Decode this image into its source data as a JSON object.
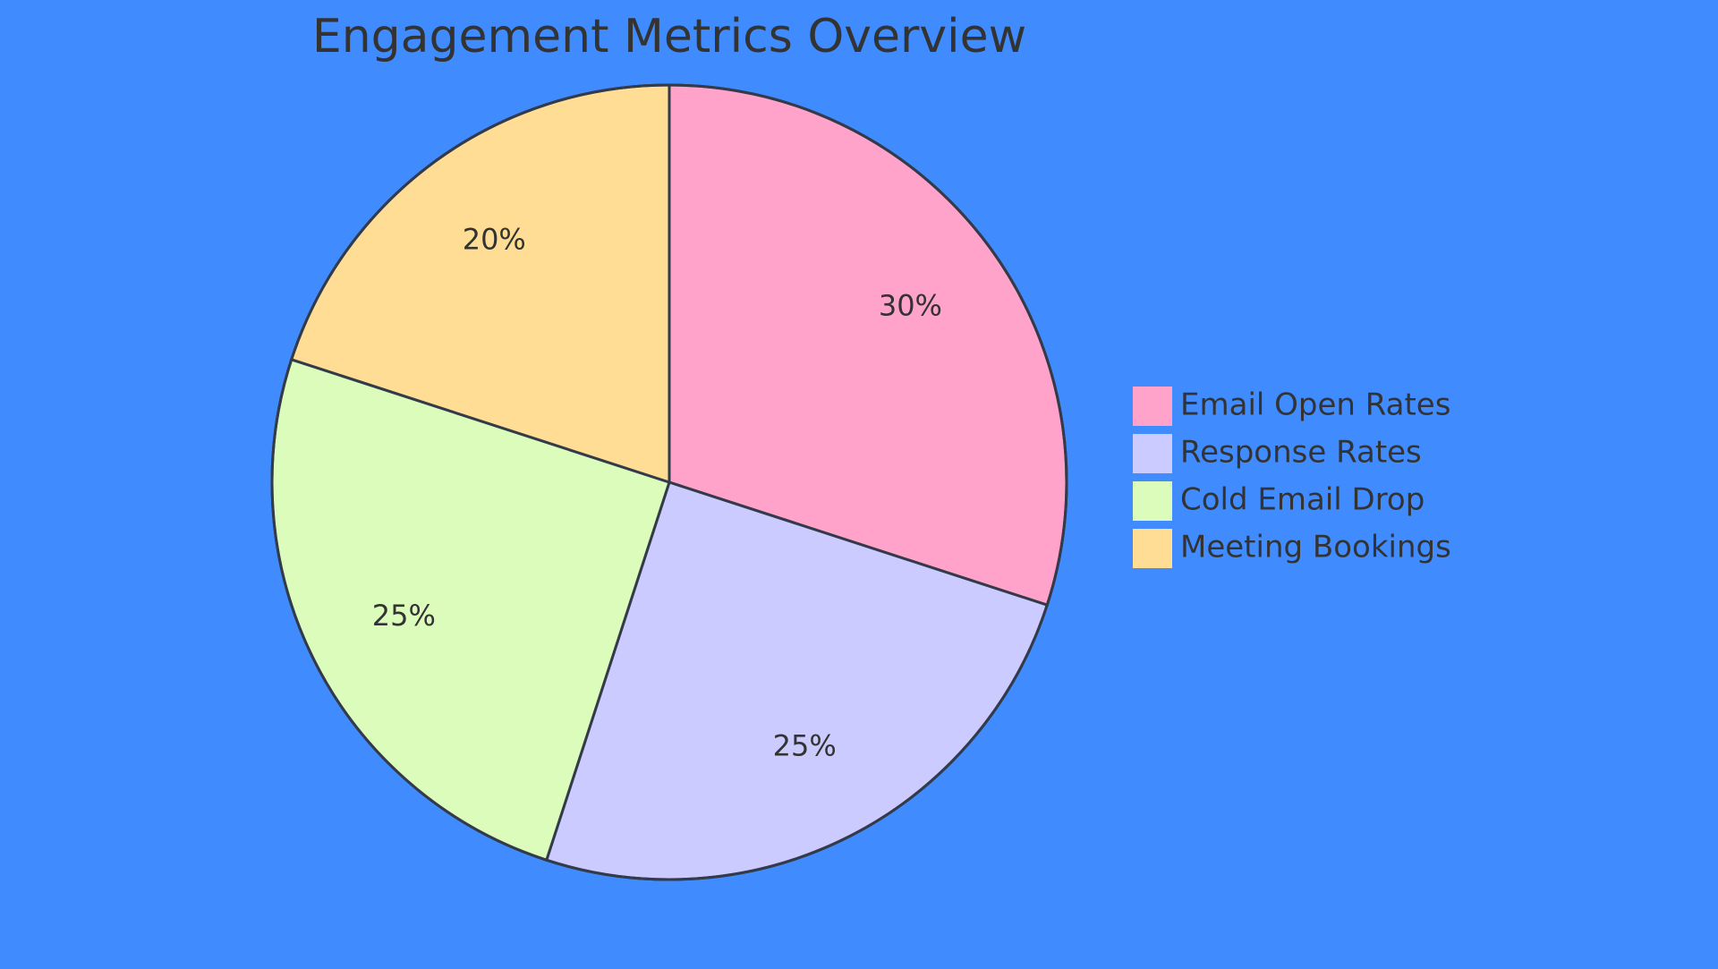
{
  "chart_data": {
    "type": "pie",
    "title": "Engagement Metrics Overview",
    "slices": [
      {
        "label": "Email Open Rates",
        "value": 30,
        "display": "30%",
        "color": "#ffa3cb"
      },
      {
        "label": "Response Rates",
        "value": 25,
        "display": "25%",
        "color": "#cbcbff"
      },
      {
        "label": "Cold Email Drop",
        "value": 25,
        "display": "25%",
        "color": "#dcfcbc"
      },
      {
        "label": "Meeting Bookings",
        "value": 20,
        "display": "20%",
        "color": "#ffdd94"
      }
    ],
    "legend_position": "right",
    "background_color": "#408cff",
    "stroke_color": "#333a4a"
  }
}
